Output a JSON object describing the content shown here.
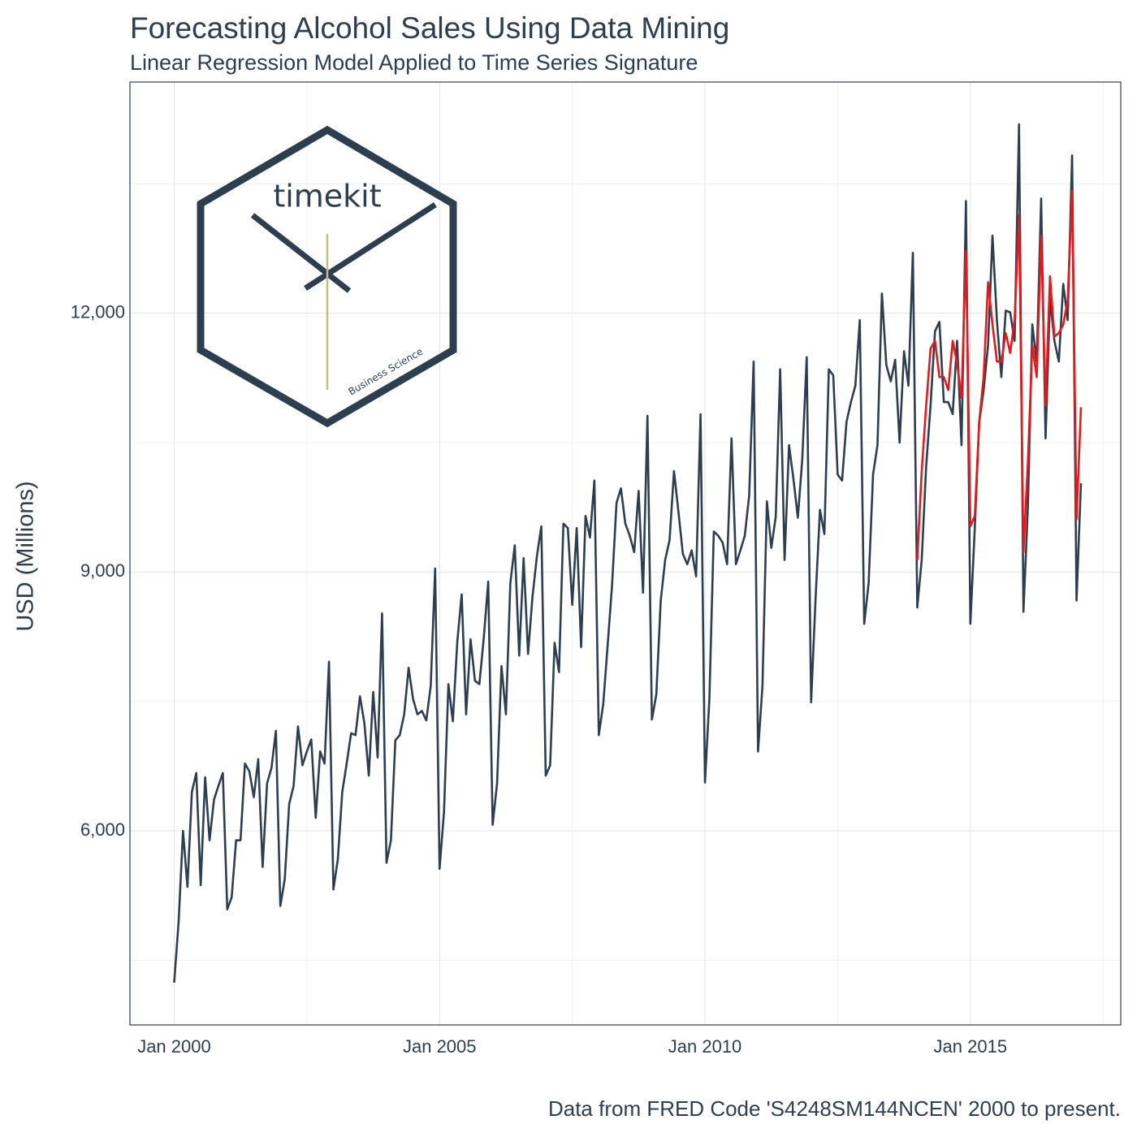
{
  "chart_data": {
    "type": "line",
    "title": "Forecasting Alcohol Sales Using Data Mining",
    "subtitle": "Linear Regression Model Applied to Time Series Signature",
    "y_label": "USD (Millions)",
    "caption": "Data from FRED Code 'S4248SM144NCEN' 2000 to present.",
    "logo": {
      "text": "timekit",
      "subtitle": "Business Science"
    },
    "x": [
      "2000-01",
      "2000-02",
      "2000-03",
      "2000-04",
      "2000-05",
      "2000-06",
      "2000-07",
      "2000-08",
      "2000-09",
      "2000-10",
      "2000-11",
      "2000-12",
      "2001-01",
      "2001-02",
      "2001-03",
      "2001-04",
      "2001-05",
      "2001-06",
      "2001-07",
      "2001-08",
      "2001-09",
      "2001-10",
      "2001-11",
      "2001-12",
      "2002-01",
      "2002-02",
      "2002-03",
      "2002-04",
      "2002-05",
      "2002-06",
      "2002-07",
      "2002-08",
      "2002-09",
      "2002-10",
      "2002-11",
      "2002-12",
      "2003-01",
      "2003-02",
      "2003-03",
      "2003-04",
      "2003-05",
      "2003-06",
      "2003-07",
      "2003-08",
      "2003-09",
      "2003-10",
      "2003-11",
      "2003-12",
      "2004-01",
      "2004-02",
      "2004-03",
      "2004-04",
      "2004-05",
      "2004-06",
      "2004-07",
      "2004-08",
      "2004-09",
      "2004-10",
      "2004-11",
      "2004-12",
      "2005-01",
      "2005-02",
      "2005-03",
      "2005-04",
      "2005-05",
      "2005-06",
      "2005-07",
      "2005-08",
      "2005-09",
      "2005-10",
      "2005-11",
      "2005-12",
      "2006-01",
      "2006-02",
      "2006-03",
      "2006-04",
      "2006-05",
      "2006-06",
      "2006-07",
      "2006-08",
      "2006-09",
      "2006-10",
      "2006-11",
      "2006-12",
      "2007-01",
      "2007-02",
      "2007-03",
      "2007-04",
      "2007-05",
      "2007-06",
      "2007-07",
      "2007-08",
      "2007-09",
      "2007-10",
      "2007-11",
      "2007-12",
      "2008-01",
      "2008-02",
      "2008-03",
      "2008-04",
      "2008-05",
      "2008-06",
      "2008-07",
      "2008-08",
      "2008-09",
      "2008-10",
      "2008-11",
      "2008-12",
      "2009-01",
      "2009-02",
      "2009-03",
      "2009-04",
      "2009-05",
      "2009-06",
      "2009-07",
      "2009-08",
      "2009-09",
      "2009-10",
      "2009-11",
      "2009-12",
      "2010-01",
      "2010-02",
      "2010-03",
      "2010-04",
      "2010-05",
      "2010-06",
      "2010-07",
      "2010-08",
      "2010-09",
      "2010-10",
      "2010-11",
      "2010-12",
      "2011-01",
      "2011-02",
      "2011-03",
      "2011-04",
      "2011-05",
      "2011-06",
      "2011-07",
      "2011-08",
      "2011-09",
      "2011-10",
      "2011-11",
      "2011-12",
      "2012-01",
      "2012-02",
      "2012-03",
      "2012-04",
      "2012-05",
      "2012-06",
      "2012-07",
      "2012-08",
      "2012-09",
      "2012-10",
      "2012-11",
      "2012-12",
      "2013-01",
      "2013-02",
      "2013-03",
      "2013-04",
      "2013-05",
      "2013-06",
      "2013-07",
      "2013-08",
      "2013-09",
      "2013-10",
      "2013-11",
      "2013-12",
      "2014-01",
      "2014-02",
      "2014-03",
      "2014-04",
      "2014-05",
      "2014-06",
      "2014-07",
      "2014-08",
      "2014-09",
      "2014-10",
      "2014-11",
      "2014-12",
      "2015-01",
      "2015-02",
      "2015-03",
      "2015-04",
      "2015-05",
      "2015-06",
      "2015-07",
      "2015-08",
      "2015-09",
      "2015-10",
      "2015-11",
      "2015-12",
      "2016-01",
      "2016-02",
      "2016-03",
      "2016-04",
      "2016-05",
      "2016-06",
      "2016-07",
      "2016-08",
      "2016-09",
      "2016-10",
      "2016-11",
      "2016-12",
      "2017-01",
      "2017-02"
    ],
    "series": [
      {
        "color": "#2c3e50",
        "values": [
          4240,
          4940,
          6000,
          5350,
          6450,
          6670,
          5370,
          6620,
          5890,
          6360,
          6520,
          6670,
          5090,
          5230,
          5890,
          5890,
          6780,
          6690,
          6390,
          6830,
          5580,
          6550,
          6730,
          7160,
          5130,
          5440,
          6310,
          6520,
          7210,
          6760,
          6920,
          7060,
          6150,
          6920,
          6780,
          7960,
          5320,
          5670,
          6450,
          6780,
          7130,
          7110,
          7560,
          7250,
          6640,
          7610,
          6850,
          8520,
          5630,
          5890,
          7050,
          7110,
          7350,
          7890,
          7530,
          7350,
          7390,
          7280,
          7680,
          9040,
          5560,
          6220,
          7700,
          7270,
          8190,
          8740,
          7350,
          8220,
          7740,
          7700,
          8240,
          8890,
          6070,
          6550,
          7910,
          7350,
          8870,
          9310,
          8030,
          9160,
          8050,
          8710,
          9180,
          9530,
          6640,
          6760,
          8180,
          7840,
          9560,
          9510,
          8620,
          9510,
          8130,
          9650,
          9400,
          10060,
          7110,
          7470,
          8150,
          8850,
          9800,
          9970,
          9560,
          9420,
          9230,
          9940,
          8760,
          10810,
          7290,
          7580,
          8670,
          9140,
          9370,
          10170,
          9700,
          9210,
          9090,
          9250,
          8950,
          10830,
          6560,
          7530,
          9470,
          9420,
          9340,
          9090,
          10550,
          9090,
          9250,
          9420,
          9890,
          11440,
          6920,
          7680,
          9820,
          9280,
          9640,
          11350,
          9140,
          10470,
          10080,
          9630,
          10310,
          11490,
          7490,
          8690,
          9720,
          9440,
          11350,
          11280,
          10130,
          10060,
          10740,
          10970,
          11160,
          11920,
          8400,
          8870,
          10130,
          10470,
          12230,
          11400,
          11210,
          11460,
          10500,
          11560,
          11160,
          12700,
          8590,
          9140,
          10220,
          10930,
          11790,
          11900,
          10970,
          10970,
          10830,
          11680,
          10470,
          13300,
          8400,
          9510,
          10740,
          11110,
          11630,
          12900,
          11920,
          11260,
          12030,
          12010,
          11680,
          14190,
          8540,
          9750,
          11870,
          11440,
          13330,
          10550,
          12170,
          11680,
          11440,
          12340,
          11920,
          13830,
          8670,
          10030
        ]
      },
      {
        "color": "#e31a1c",
        "values": [
          null,
          null,
          null,
          null,
          null,
          null,
          null,
          null,
          null,
          null,
          null,
          null,
          null,
          null,
          null,
          null,
          null,
          null,
          null,
          null,
          null,
          null,
          null,
          null,
          null,
          null,
          null,
          null,
          null,
          null,
          null,
          null,
          null,
          null,
          null,
          null,
          null,
          null,
          null,
          null,
          null,
          null,
          null,
          null,
          null,
          null,
          null,
          null,
          null,
          null,
          null,
          null,
          null,
          null,
          null,
          null,
          null,
          null,
          null,
          null,
          null,
          null,
          null,
          null,
          null,
          null,
          null,
          null,
          null,
          null,
          null,
          null,
          null,
          null,
          null,
          null,
          null,
          null,
          null,
          null,
          null,
          null,
          null,
          null,
          null,
          null,
          null,
          null,
          null,
          null,
          null,
          null,
          null,
          null,
          null,
          null,
          null,
          null,
          null,
          null,
          null,
          null,
          null,
          null,
          null,
          null,
          null,
          null,
          null,
          null,
          null,
          null,
          null,
          null,
          null,
          null,
          null,
          null,
          null,
          null,
          null,
          null,
          null,
          null,
          null,
          null,
          null,
          null,
          null,
          null,
          null,
          null,
          null,
          null,
          null,
          null,
          null,
          null,
          null,
          null,
          null,
          null,
          null,
          null,
          null,
          null,
          null,
          null,
          null,
          null,
          null,
          null,
          null,
          null,
          null,
          null,
          null,
          null,
          null,
          null,
          null,
          null,
          null,
          null,
          null,
          null,
          null,
          null,
          9140,
          10170,
          10930,
          11590,
          11680,
          11260,
          11260,
          11110,
          11680,
          11420,
          11020,
          12720,
          9530,
          9650,
          10740,
          11260,
          12360,
          11870,
          11440,
          11440,
          11770,
          11540,
          11920,
          13140,
          9230,
          10270,
          11630,
          11260,
          12900,
          10930,
          12430,
          11730,
          11770,
          11870,
          12150,
          13420,
          9610,
          10910
        ]
      }
    ],
    "xlim": [
      "1999-03",
      "2017-11"
    ],
    "xticks": [
      {
        "value": "2000-01",
        "label": "Jan 2000"
      },
      {
        "value": "2005-01",
        "label": "Jan 2005"
      },
      {
        "value": "2010-01",
        "label": "Jan 2010"
      },
      {
        "value": "2015-01",
        "label": "Jan 2015"
      }
    ],
    "minor_xticks": [
      "2002-07",
      "2007-07",
      "2012-07",
      "2017-07"
    ],
    "ylim": [
      3750,
      14680
    ],
    "yticks": [
      {
        "value": 6000,
        "label": "6,000"
      },
      {
        "value": 9000,
        "label": "9,000"
      },
      {
        "value": 12000,
        "label": "12,000"
      }
    ],
    "minor_yticks": [
      4500,
      7500,
      10500,
      13500
    ],
    "grid": true
  }
}
